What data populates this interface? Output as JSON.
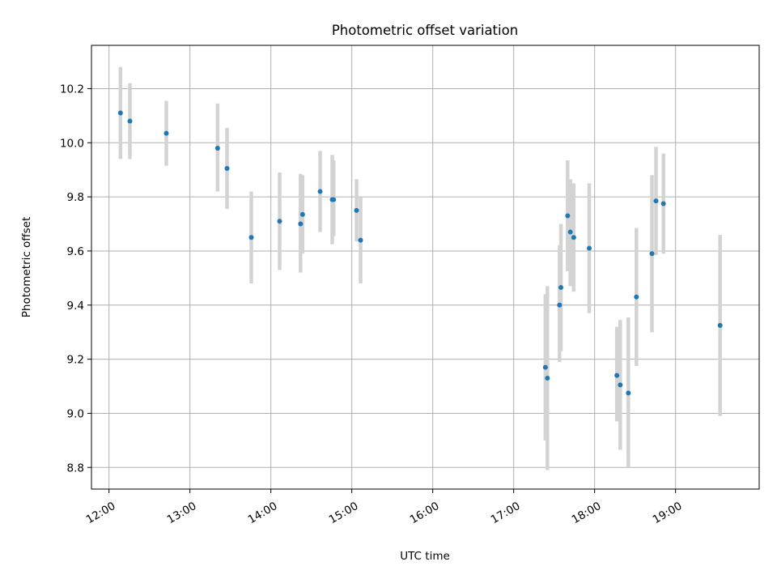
{
  "chart_data": {
    "type": "scatter",
    "title": "Photometric offset variation",
    "xlabel": "UTC time",
    "ylabel": "Photometric offset",
    "x_unit": "minutes since 12:00 UTC",
    "xlim": [
      -13,
      482
    ],
    "ylim": [
      8.72,
      10.36
    ],
    "grid": true,
    "legend": "none",
    "x_ticks": [
      {
        "value": 0,
        "label": "12:00"
      },
      {
        "value": 60,
        "label": "13:00"
      },
      {
        "value": 120,
        "label": "14:00"
      },
      {
        "value": 180,
        "label": "15:00"
      },
      {
        "value": 240,
        "label": "16:00"
      },
      {
        "value": 300,
        "label": "17:00"
      },
      {
        "value": 360,
        "label": "18:00"
      },
      {
        "value": 420,
        "label": "19:00"
      }
    ],
    "y_ticks": [
      {
        "value": 8.8,
        "label": "8.8"
      },
      {
        "value": 9.0,
        "label": "9.0"
      },
      {
        "value": 9.2,
        "label": "9.2"
      },
      {
        "value": 9.4,
        "label": "9.4"
      },
      {
        "value": 9.6,
        "label": "9.6"
      },
      {
        "value": 9.8,
        "label": "9.8"
      },
      {
        "value": 10.0,
        "label": "10.0"
      },
      {
        "value": 10.2,
        "label": "10.2"
      }
    ],
    "colors": {
      "marker": "#1f77b4",
      "errorbar": "#d3d3d3",
      "grid": "#b0b0b0"
    },
    "series": [
      {
        "name": "offset",
        "points": [
          {
            "x": 8.5,
            "y": 10.11,
            "yerr_low": 9.94,
            "yerr_high": 10.28
          },
          {
            "x": 15.5,
            "y": 10.08,
            "yerr_low": 9.94,
            "yerr_high": 10.22
          },
          {
            "x": 42.5,
            "y": 10.035,
            "yerr_low": 9.915,
            "yerr_high": 10.155
          },
          {
            "x": 80.5,
            "y": 9.98,
            "yerr_low": 9.82,
            "yerr_high": 10.145
          },
          {
            "x": 87.5,
            "y": 9.905,
            "yerr_low": 9.755,
            "yerr_high": 10.055
          },
          {
            "x": 105.5,
            "y": 9.65,
            "yerr_low": 9.48,
            "yerr_high": 9.82
          },
          {
            "x": 126.5,
            "y": 9.71,
            "yerr_low": 9.53,
            "yerr_high": 9.89
          },
          {
            "x": 142,
            "y": 9.7,
            "yerr_low": 9.52,
            "yerr_high": 9.885
          },
          {
            "x": 143.5,
            "y": 9.735,
            "yerr_low": 9.59,
            "yerr_high": 9.88
          },
          {
            "x": 156.5,
            "y": 9.82,
            "yerr_low": 9.67,
            "yerr_high": 9.97
          },
          {
            "x": 165.5,
            "y": 9.79,
            "yerr_low": 9.625,
            "yerr_high": 9.955
          },
          {
            "x": 166.5,
            "y": 9.79,
            "yerr_low": 9.655,
            "yerr_high": 9.935
          },
          {
            "x": 183.5,
            "y": 9.75,
            "yerr_low": 9.635,
            "yerr_high": 9.865
          },
          {
            "x": 186.5,
            "y": 9.64,
            "yerr_low": 9.48,
            "yerr_high": 9.8
          },
          {
            "x": 323.5,
            "y": 9.17,
            "yerr_low": 8.9,
            "yerr_high": 9.44
          },
          {
            "x": 325,
            "y": 9.13,
            "yerr_low": 8.79,
            "yerr_high": 9.47
          },
          {
            "x": 334,
            "y": 9.4,
            "yerr_low": 9.19,
            "yerr_high": 9.62
          },
          {
            "x": 335,
            "y": 9.465,
            "yerr_low": 9.23,
            "yerr_high": 9.7
          },
          {
            "x": 340,
            "y": 9.73,
            "yerr_low": 9.525,
            "yerr_high": 9.935
          },
          {
            "x": 342,
            "y": 9.67,
            "yerr_low": 9.47,
            "yerr_high": 9.865
          },
          {
            "x": 344.5,
            "y": 9.65,
            "yerr_low": 9.45,
            "yerr_high": 9.85
          },
          {
            "x": 356,
            "y": 9.61,
            "yerr_low": 9.37,
            "yerr_high": 9.85
          },
          {
            "x": 376.5,
            "y": 9.14,
            "yerr_low": 8.97,
            "yerr_high": 9.32
          },
          {
            "x": 379,
            "y": 9.105,
            "yerr_low": 8.865,
            "yerr_high": 9.345
          },
          {
            "x": 385,
            "y": 9.075,
            "yerr_low": 8.8,
            "yerr_high": 9.355
          },
          {
            "x": 391,
            "y": 9.43,
            "yerr_low": 9.175,
            "yerr_high": 9.685
          },
          {
            "x": 402.5,
            "y": 9.59,
            "yerr_low": 9.3,
            "yerr_high": 9.88
          },
          {
            "x": 405.5,
            "y": 9.785,
            "yerr_low": 9.585,
            "yerr_high": 9.985
          },
          {
            "x": 411,
            "y": 9.775,
            "yerr_low": 9.59,
            "yerr_high": 9.96
          },
          {
            "x": 453,
            "y": 9.325,
            "yerr_low": 8.99,
            "yerr_high": 9.66
          }
        ]
      }
    ]
  }
}
